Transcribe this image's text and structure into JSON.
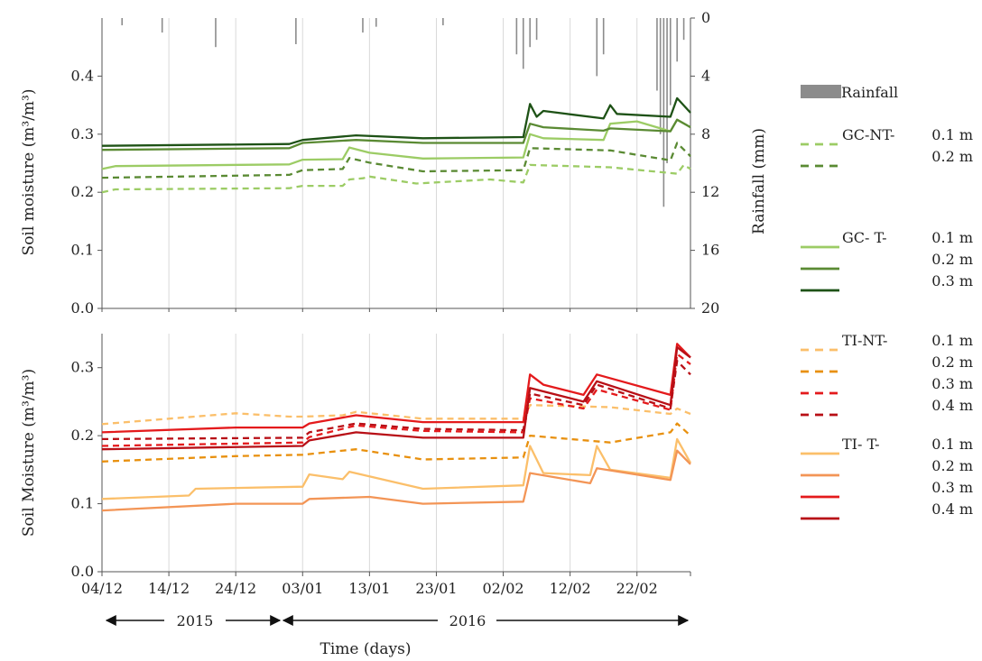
{
  "chart_data": [
    {
      "type": "line",
      "panel": "top",
      "ylabel": "Soil moisture (m³/m³)",
      "ylim": [
        0,
        0.5
      ],
      "yticks": [
        "0.0",
        "0.1",
        "0.2",
        "0.3",
        "0.4"
      ],
      "y2label": "Rainfall (mm)",
      "y2lim": [
        0,
        20
      ],
      "y2_inverted": true,
      "y2ticks": [
        "0",
        "4",
        "8",
        "12",
        "16",
        "20"
      ],
      "grid": "vertical",
      "x_day_range": [
        0,
        87
      ],
      "rainfall": [
        [
          3,
          0.5
        ],
        [
          9,
          1.0
        ],
        [
          17,
          2.0
        ],
        [
          29,
          1.8
        ],
        [
          39,
          1.0
        ],
        [
          41,
          0.6
        ],
        [
          51,
          0.5
        ],
        [
          62,
          2.5
        ],
        [
          63,
          3.5
        ],
        [
          64,
          2.0
        ],
        [
          65,
          1.5
        ],
        [
          74,
          4.0
        ],
        [
          75,
          2.5
        ],
        [
          83,
          5.0
        ],
        [
          83.5,
          8.0
        ],
        [
          84,
          13.0
        ],
        [
          84.5,
          10.0
        ],
        [
          85,
          6.0
        ],
        [
          86,
          3.0
        ],
        [
          87,
          1.5
        ]
      ],
      "series": [
        {
          "name": "GC-NT- 0.1 m",
          "color": "#9ccc65",
          "dash": true,
          "values": [
            [
              0,
              0.2
            ],
            [
              2,
              0.205
            ],
            [
              28,
              0.207
            ],
            [
              30,
              0.211
            ],
            [
              36,
              0.211
            ],
            [
              37,
              0.222
            ],
            [
              39,
              0.224
            ],
            [
              40,
              0.227
            ],
            [
              47,
              0.215
            ],
            [
              58,
              0.222
            ],
            [
              63,
              0.217
            ],
            [
              64,
              0.247
            ],
            [
              76,
              0.243
            ],
            [
              86,
              0.232
            ],
            [
              87,
              0.247
            ],
            [
              88,
              0.24
            ]
          ]
        },
        {
          "name": "GC-NT- 0.2 m",
          "color": "#5a8a33",
          "dash": true,
          "values": [
            [
              0,
              0.225
            ],
            [
              28,
              0.23
            ],
            [
              30,
              0.238
            ],
            [
              36,
              0.24
            ],
            [
              37,
              0.259
            ],
            [
              40,
              0.251
            ],
            [
              48,
              0.236
            ],
            [
              63,
              0.238
            ],
            [
              64,
              0.276
            ],
            [
              76,
              0.272
            ],
            [
              85,
              0.255
            ],
            [
              86,
              0.285
            ],
            [
              88,
              0.262
            ]
          ]
        },
        {
          "name": "GC- T- 0.1 m",
          "color": "#9ccc65",
          "dash": false,
          "values": [
            [
              0,
              0.24
            ],
            [
              2,
              0.245
            ],
            [
              28,
              0.248
            ],
            [
              30,
              0.256
            ],
            [
              36,
              0.257
            ],
            [
              37,
              0.277
            ],
            [
              40,
              0.268
            ],
            [
              48,
              0.258
            ],
            [
              63,
              0.26
            ],
            [
              64,
              0.3
            ],
            [
              66,
              0.293
            ],
            [
              75,
              0.29
            ],
            [
              76,
              0.318
            ],
            [
              80,
              0.322
            ],
            [
              85,
              0.305
            ],
            [
              86,
              0.325
            ],
            [
              88,
              0.312
            ]
          ]
        },
        {
          "name": "GC- T- 0.2 m",
          "color": "#5a8a33",
          "dash": false,
          "values": [
            [
              0,
              0.273
            ],
            [
              28,
              0.276
            ],
            [
              30,
              0.285
            ],
            [
              38,
              0.29
            ],
            [
              48,
              0.285
            ],
            [
              63,
              0.285
            ],
            [
              64,
              0.318
            ],
            [
              66,
              0.312
            ],
            [
              75,
              0.306
            ],
            [
              76,
              0.31
            ],
            [
              85,
              0.305
            ],
            [
              86,
              0.325
            ],
            [
              88,
              0.312
            ]
          ]
        },
        {
          "name": "GC- T- 0.3 m",
          "color": "#1e5216",
          "dash": false,
          "values": [
            [
              0,
              0.28
            ],
            [
              28,
              0.283
            ],
            [
              30,
              0.29
            ],
            [
              38,
              0.298
            ],
            [
              48,
              0.293
            ],
            [
              63,
              0.295
            ],
            [
              64,
              0.352
            ],
            [
              65,
              0.33
            ],
            [
              66,
              0.34
            ],
            [
              75,
              0.327
            ],
            [
              76,
              0.35
            ],
            [
              77,
              0.335
            ],
            [
              85,
              0.33
            ],
            [
              86,
              0.362
            ],
            [
              88,
              0.337
            ]
          ]
        }
      ]
    },
    {
      "type": "line",
      "panel": "bottom",
      "ylabel": "Soil Moisture (m³/m³)",
      "ylim": [
        0,
        0.35
      ],
      "yticks": [
        "0.0",
        "0.1",
        "0.2",
        "0.3"
      ],
      "grid": "vertical",
      "xticklabels": [
        "04/12",
        "14/12",
        "24/12",
        "03/01",
        "13/01",
        "23/01",
        "02/02",
        "12/02",
        "22/02"
      ],
      "x_tick_days": [
        0,
        10,
        20,
        30,
        40,
        50,
        60,
        70,
        80
      ],
      "xlabel": "Time (days)",
      "year_labels": [
        "2015",
        "2016"
      ],
      "series": [
        {
          "name": "TI-NT- 0.1 m",
          "color": "#fbbf6a",
          "dash": true,
          "values": [
            [
              0,
              0.217
            ],
            [
              10,
              0.225
            ],
            [
              20,
              0.233
            ],
            [
              28,
              0.228
            ],
            [
              30,
              0.228
            ],
            [
              36,
              0.23
            ],
            [
              38,
              0.235
            ],
            [
              48,
              0.225
            ],
            [
              63,
              0.225
            ],
            [
              64,
              0.245
            ],
            [
              76,
              0.242
            ],
            [
              85,
              0.232
            ],
            [
              86,
              0.24
            ],
            [
              88,
              0.232
            ]
          ]
        },
        {
          "name": "TI-NT- 0.2 m",
          "color": "#e8900e",
          "dash": true,
          "values": [
            [
              0,
              0.162
            ],
            [
              20,
              0.17
            ],
            [
              30,
              0.172
            ],
            [
              38,
              0.18
            ],
            [
              48,
              0.165
            ],
            [
              63,
              0.168
            ],
            [
              64,
              0.2
            ],
            [
              76,
              0.19
            ],
            [
              85,
              0.205
            ],
            [
              86,
              0.218
            ],
            [
              88,
              0.2
            ]
          ]
        },
        {
          "name": "TI-NT- 0.3 m",
          "color": "#e41a1c",
          "dash": true,
          "values": [
            [
              0,
              0.185
            ],
            [
              30,
              0.19
            ],
            [
              31,
              0.198
            ],
            [
              38,
              0.215
            ],
            [
              48,
              0.207
            ],
            [
              63,
              0.205
            ],
            [
              64,
              0.255
            ],
            [
              72,
              0.24
            ],
            [
              74,
              0.268
            ],
            [
              85,
              0.238
            ],
            [
              86,
              0.32
            ],
            [
              88,
              0.305
            ]
          ]
        },
        {
          "name": "TI-NT- 0.4 m",
          "color": "#b80f16",
          "dash": true,
          "values": [
            [
              0,
              0.195
            ],
            [
              30,
              0.197
            ],
            [
              31,
              0.205
            ],
            [
              38,
              0.218
            ],
            [
              48,
              0.21
            ],
            [
              63,
              0.208
            ],
            [
              64,
              0.262
            ],
            [
              72,
              0.245
            ],
            [
              74,
              0.275
            ],
            [
              85,
              0.24
            ],
            [
              86,
              0.31
            ],
            [
              88,
              0.29
            ]
          ]
        },
        {
          "name": "TI- T- 0.1 m",
          "color": "#fbbf6a",
          "dash": false,
          "values": [
            [
              0,
              0.107
            ],
            [
              13,
              0.112
            ],
            [
              14,
              0.122
            ],
            [
              30,
              0.125
            ],
            [
              31,
              0.143
            ],
            [
              36,
              0.136
            ],
            [
              37,
              0.147
            ],
            [
              48,
              0.122
            ],
            [
              63,
              0.127
            ],
            [
              64,
              0.185
            ],
            [
              66,
              0.145
            ],
            [
              73,
              0.142
            ],
            [
              74,
              0.185
            ],
            [
              76,
              0.15
            ],
            [
              85,
              0.138
            ],
            [
              86,
              0.195
            ],
            [
              88,
              0.16
            ]
          ]
        },
        {
          "name": "TI- T- 0.2 m",
          "color": "#f39556",
          "dash": false,
          "values": [
            [
              0,
              0.09
            ],
            [
              20,
              0.1
            ],
            [
              30,
              0.1
            ],
            [
              31,
              0.107
            ],
            [
              40,
              0.11
            ],
            [
              48,
              0.1
            ],
            [
              63,
              0.103
            ],
            [
              64,
              0.145
            ],
            [
              73,
              0.13
            ],
            [
              74,
              0.152
            ],
            [
              85,
              0.135
            ],
            [
              86,
              0.178
            ],
            [
              88,
              0.158
            ]
          ]
        },
        {
          "name": "TI- T- 0.3 m",
          "color": "#e41a1c",
          "dash": false,
          "values": [
            [
              0,
              0.205
            ],
            [
              20,
              0.212
            ],
            [
              30,
              0.212
            ],
            [
              31,
              0.218
            ],
            [
              38,
              0.23
            ],
            [
              48,
              0.22
            ],
            [
              63,
              0.22
            ],
            [
              64,
              0.29
            ],
            [
              66,
              0.275
            ],
            [
              72,
              0.26
            ],
            [
              74,
              0.29
            ],
            [
              85,
              0.26
            ],
            [
              86,
              0.335
            ],
            [
              88,
              0.315
            ]
          ]
        },
        {
          "name": "TI- T- 0.4 m",
          "color": "#b80f16",
          "dash": false,
          "values": [
            [
              0,
              0.18
            ],
            [
              30,
              0.185
            ],
            [
              31,
              0.193
            ],
            [
              38,
              0.205
            ],
            [
              48,
              0.197
            ],
            [
              63,
              0.197
            ],
            [
              64,
              0.27
            ],
            [
              72,
              0.25
            ],
            [
              74,
              0.28
            ],
            [
              85,
              0.245
            ],
            [
              86,
              0.33
            ],
            [
              88,
              0.315
            ]
          ]
        }
      ]
    }
  ],
  "legend": {
    "rainfall_label": "Rainfall",
    "groups": [
      {
        "prefix": "GC-NT-",
        "rows": [
          {
            "label": "0.1 m",
            "color": "#9ccc65",
            "dash": true
          },
          {
            "label": "0.2 m",
            "color": "#5a8a33",
            "dash": true
          }
        ]
      },
      {
        "prefix": "GC-   T-",
        "rows": [
          {
            "label": "0.1 m",
            "color": "#9ccc65",
            "dash": false
          },
          {
            "label": "0.2 m",
            "color": "#5a8a33",
            "dash": false
          },
          {
            "label": "0.3 m",
            "color": "#1e5216",
            "dash": false
          }
        ]
      },
      {
        "prefix": "TI-NT-",
        "rows": [
          {
            "label": "0.1 m",
            "color": "#fbbf6a",
            "dash": true
          },
          {
            "label": "0.2 m",
            "color": "#e8900e",
            "dash": true
          },
          {
            "label": "0.3 m",
            "color": "#e41a1c",
            "dash": true
          },
          {
            "label": "0.4 m",
            "color": "#b80f16",
            "dash": true
          }
        ]
      },
      {
        "prefix": "TI-   T-",
        "rows": [
          {
            "label": "0.1 m",
            "color": "#fbbf6a",
            "dash": false
          },
          {
            "label": "0.2 m",
            "color": "#f39556",
            "dash": false
          },
          {
            "label": "0.3 m",
            "color": "#e41a1c",
            "dash": false
          },
          {
            "label": "0.4 m",
            "color": "#b80f16",
            "dash": false
          }
        ]
      }
    ]
  },
  "colors": {
    "rainfall": "#8c8c8c",
    "axis": "#555555",
    "grid": "#d9d9d9"
  }
}
